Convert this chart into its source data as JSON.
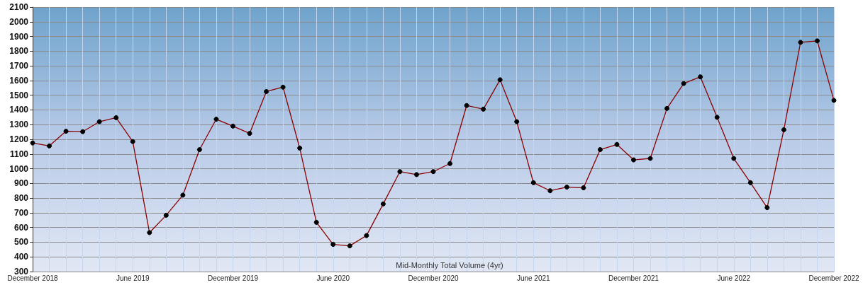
{
  "chart_data": {
    "type": "line",
    "title": "Mid-Monthly Total Volume (4yr)",
    "categories": [
      "December 2018",
      null,
      null,
      null,
      null,
      null,
      "June 2019",
      null,
      null,
      null,
      null,
      null,
      "December 2019",
      null,
      null,
      null,
      null,
      null,
      "June 2020",
      null,
      null,
      null,
      null,
      null,
      "December 2020",
      null,
      null,
      null,
      null,
      null,
      "June 2021",
      null,
      null,
      null,
      null,
      null,
      "December 2021",
      null,
      null,
      null,
      null,
      null,
      "June 2022",
      null,
      null,
      null,
      null,
      null,
      "December 2022"
    ],
    "series": [
      {
        "color": "#8b0000",
        "values": [
          1175,
          1155,
          1255,
          1252,
          1320,
          1347,
          1185,
          565,
          683,
          820,
          1130,
          1337,
          1290,
          1240,
          1525,
          1555,
          1140,
          635,
          485,
          475,
          545,
          760,
          980,
          960,
          980,
          1035,
          1430,
          1405,
          1605,
          1320,
          905,
          850,
          875,
          870,
          1130,
          1165,
          1060,
          1070,
          1410,
          1580,
          1625,
          1350,
          1070,
          905,
          735,
          1265,
          1860,
          1870,
          1465
        ]
      }
    ],
    "ylim": [
      300,
      2100
    ],
    "yticks": [
      300,
      400,
      500,
      600,
      700,
      800,
      900,
      1000,
      1100,
      1200,
      1300,
      1400,
      1500,
      1600,
      1700,
      1800,
      1900,
      2000,
      2100
    ],
    "grid": true,
    "marker": "circle",
    "line_style": "solid"
  }
}
